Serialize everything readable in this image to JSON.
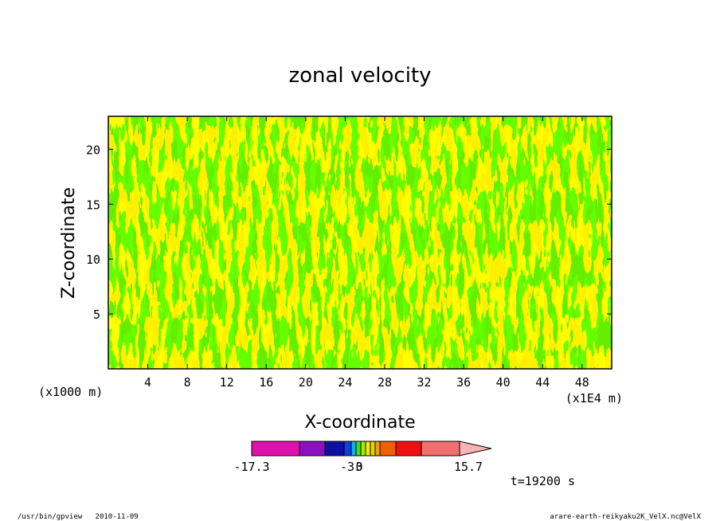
{
  "chart_data": {
    "type": "heatmap",
    "title": "zonal velocity",
    "xlabel": "X-coordinate",
    "ylabel": "Z-coordinate",
    "x_units": "(x1E4 m)",
    "y_units": "(x1000 m)",
    "x_ticks": [
      "4",
      "8",
      "12",
      "16",
      "20",
      "24",
      "28",
      "32",
      "36",
      "40",
      "44",
      "48"
    ],
    "y_ticks": [
      "5",
      "10",
      "15",
      "20"
    ],
    "xlim": [
      0,
      51
    ],
    "ylim": [
      0,
      23
    ],
    "time_label": "t=19200 s",
    "colorbar": {
      "min_label": "-17.3",
      "max_label": "15.7",
      "tick_labels": [
        "-3",
        "0",
        "3"
      ],
      "colors": [
        "#e010b0",
        "#8a10c0",
        "#1010a0",
        "#1040e0",
        "#10b0f0",
        "#40e010",
        "#a0f000",
        "#f0f000",
        "#f0d000",
        "#f0a000",
        "#f06000",
        "#f01010",
        "#f07070",
        "#f4b4b4"
      ]
    },
    "field_colors": {
      "negative": "#22dd00",
      "positive": "#ffff00",
      "contour": "#000000"
    }
  },
  "footer": {
    "left": "/usr/bin/gpview   2010-11-09",
    "right": "arare-earth-reikyaku2K_VelX.nc@VelX"
  }
}
